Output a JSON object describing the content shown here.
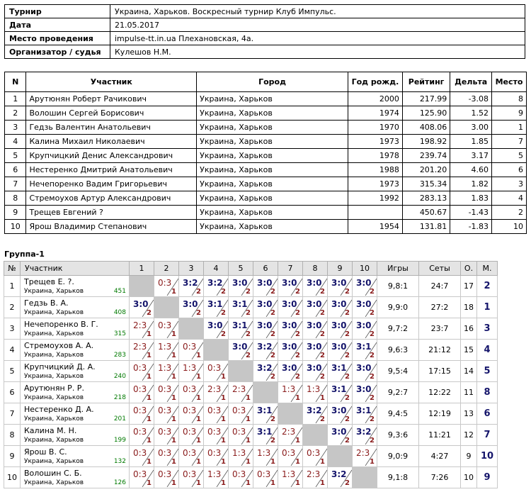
{
  "info": [
    {
      "label": "Турнир",
      "value": "Украина, Харьков. Воскресный турнир Клуб Импульс."
    },
    {
      "label": "Дата",
      "value": "21.05.2017"
    },
    {
      "label": "Место проведения",
      "value": "impulse-tt.in.ua Плехановская, 4а."
    },
    {
      "label": "Организатор / судья",
      "value": "Кулешов Н.М."
    }
  ],
  "participants": {
    "headers": [
      "N",
      "Участник",
      "Город",
      "Год рожд.",
      "Рейтинг",
      "Дельта",
      "Место"
    ],
    "rows": [
      [
        "1",
        "Арутюнян Роберт Рачикович",
        "Украина, Харьков",
        "2000",
        "217.99",
        "-3.08",
        "8"
      ],
      [
        "2",
        "Волошин Сергей Борисович",
        "Украина, Харьков",
        "1974",
        "125.90",
        "1.52",
        "9"
      ],
      [
        "3",
        "Гедзь Валентин Анатольевич",
        "Украина, Харьков",
        "1970",
        "408.06",
        "3.00",
        "1"
      ],
      [
        "4",
        "Калина Михаил Николаевич",
        "Украина, Харьков",
        "1973",
        "198.92",
        "1.85",
        "7"
      ],
      [
        "5",
        "Крупчицкий Денис Александрович",
        "Украина, Харьков",
        "1978",
        "239.74",
        "3.17",
        "5"
      ],
      [
        "6",
        "Нестеренко Дмитрий Анатольевич",
        "Украина, Харьков",
        "1988",
        "201.20",
        "4.60",
        "6"
      ],
      [
        "7",
        "Нечепоренко Вадим Григорьевич",
        "Украина, Харьков",
        "1973",
        "315.34",
        "1.82",
        "3"
      ],
      [
        "8",
        "Стремоухов Артур Александрович",
        "Украина, Харьков",
        "1992",
        "283.13",
        "1.83",
        "4"
      ],
      [
        "9",
        "Трещев Евгений ?",
        "Украина, Харьков",
        "",
        "450.67",
        "-1.43",
        "2"
      ],
      [
        "10",
        "Ярош Владимир Степанович",
        "Украина, Харьков",
        "1954",
        "131.81",
        "-1.83",
        "10"
      ]
    ]
  },
  "group": {
    "title": "Группа-1",
    "headers": [
      "№",
      "Участник",
      "1",
      "2",
      "3",
      "4",
      "5",
      "6",
      "7",
      "8",
      "9",
      "10",
      "Игры",
      "Сеты",
      "О.",
      "М."
    ],
    "rows": [
      {
        "n": "1",
        "name": "Трещев Е. ?.",
        "city": "Украина, Харьков",
        "rating": "451",
        "cells": [
          null,
          "0:3|1",
          "3:2|2",
          "3:2|2",
          "3:0|2",
          "3:0|2",
          "3:0|2",
          "3:0|2",
          "3:0|2",
          "3:0|2"
        ],
        "games": "9,8:1",
        "sets": "24:7",
        "points": "17",
        "place": "2"
      },
      {
        "n": "2",
        "name": "Гедзь В. А.",
        "city": "Украина, Харьков",
        "rating": "408",
        "cells": [
          "3:0|2",
          null,
          "3:0|2",
          "3:1|2",
          "3:1|2",
          "3:0|2",
          "3:0|2",
          "3:0|2",
          "3:0|2",
          "3:0|2"
        ],
        "games": "9,9:0",
        "sets": "27:2",
        "points": "18",
        "place": "1"
      },
      {
        "n": "3",
        "name": "Нечепоренко В. Г.",
        "city": "Украина, Харьков",
        "rating": "315",
        "cells": [
          "2:3|1",
          "0:3|1",
          null,
          "3:0|2",
          "3:1|2",
          "3:0|2",
          "3:0|2",
          "3:0|2",
          "3:0|2",
          "3:0|2"
        ],
        "games": "9,7:2",
        "sets": "23:7",
        "points": "16",
        "place": "3"
      },
      {
        "n": "4",
        "name": "Стремоухов А. А.",
        "city": "Украина, Харьков",
        "rating": "283",
        "cells": [
          "2:3|1",
          "1:3|1",
          "0:3|1",
          null,
          "3:0|2",
          "3:2|2",
          "3:0|2",
          "3:0|2",
          "3:0|2",
          "3:1|2"
        ],
        "games": "9,6:3",
        "sets": "21:12",
        "points": "15",
        "place": "4"
      },
      {
        "n": "5",
        "name": "Крупчицкий Д. А.",
        "city": "Украина, Харьков",
        "rating": "240",
        "cells": [
          "0:3|1",
          "1:3|1",
          "1:3|1",
          "0:3|1",
          null,
          "3:2|2",
          "3:0|2",
          "3:0|2",
          "3:1|2",
          "3:0|2"
        ],
        "games": "9,5:4",
        "sets": "17:15",
        "points": "14",
        "place": "5"
      },
      {
        "n": "6",
        "name": "Арутюнян Р. Р.",
        "city": "Украина, Харьков",
        "rating": "218",
        "cells": [
          "0:3|1",
          "0:3|1",
          "0:3|1",
          "2:3|1",
          "2:3|1",
          null,
          "1:3|1",
          "1:3|1",
          "3:1|2",
          "3:0|2"
        ],
        "games": "9,2:7",
        "sets": "12:22",
        "points": "11",
        "place": "8"
      },
      {
        "n": "7",
        "name": "Нестеренко Д. А.",
        "city": "Украина, Харьков",
        "rating": "201",
        "cells": [
          "0:3|1",
          "0:3|1",
          "0:3|1",
          "0:3|1",
          "0:3|1",
          "3:1|2",
          null,
          "3:2|2",
          "3:0|2",
          "3:1|2"
        ],
        "games": "9,4:5",
        "sets": "12:19",
        "points": "13",
        "place": "6"
      },
      {
        "n": "8",
        "name": "Калина М. Н.",
        "city": "Украина, Харьков",
        "rating": "199",
        "cells": [
          "0:3|1",
          "0:3|1",
          "0:3|1",
          "0:3|1",
          "0:3|1",
          "3:1|2",
          "2:3|1",
          null,
          "3:0|2",
          "3:2|2"
        ],
        "games": "9,3:6",
        "sets": "11:21",
        "points": "12",
        "place": "7"
      },
      {
        "n": "9",
        "name": "Ярош В. С.",
        "city": "Украина, Харьков",
        "rating": "132",
        "cells": [
          "0:3|1",
          "0:3|1",
          "0:3|1",
          "0:3|1",
          "1:3|1",
          "1:3|1",
          "0:3|1",
          "0:3|1",
          null,
          "2:3|1"
        ],
        "games": "9,0:9",
        "sets": "4:27",
        "points": "9",
        "place": "10"
      },
      {
        "n": "10",
        "name": "Волошин С. Б.",
        "city": "Украина, Харьков",
        "rating": "126",
        "cells": [
          "0:3|1",
          "0:3|1",
          "0:3|1",
          "1:3|1",
          "0:3|1",
          "0:3|1",
          "1:3|1",
          "2:3|1",
          "3:2|2",
          null
        ],
        "games": "9,1:8",
        "sets": "7:26",
        "points": "10",
        "place": "9"
      }
    ]
  }
}
